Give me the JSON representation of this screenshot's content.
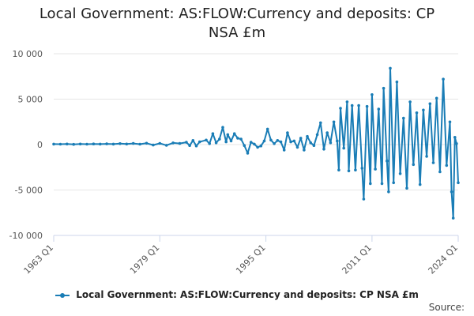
{
  "title_lines": [
    "Local Government: AS:FLOW:Currency and deposits: CP",
    "NSA £m"
  ],
  "source_label": "Source:",
  "colors": {
    "series": "#1a7db6",
    "grid": "#e6e6e6",
    "axis": "#ccd6eb"
  },
  "chart_data": {
    "type": "line",
    "title": "Local Government: AS:FLOW:Currency and deposits: CP NSA £m",
    "xlabel": "",
    "ylabel": "",
    "ylim": [
      -10000,
      10000
    ],
    "yticks": [
      10000,
      5000,
      0,
      -5000,
      -10000
    ],
    "ytick_labels": [
      "10 000",
      "5 000",
      "0",
      "-5 000",
      "-10 000"
    ],
    "x_start": "1963 Q1",
    "x_end": "2024 Q1",
    "xticks": [
      "1963 Q1",
      "1979 Q1",
      "1995 Q1",
      "2011 Q1",
      "2024 Q1"
    ],
    "grid": true,
    "legend": "bottom",
    "series": [
      {
        "name": "Local Government: AS:FLOW:Currency and deposits: CP NSA £m",
        "points": [
          [
            "1963 Q1",
            50
          ],
          [
            "1964 Q1",
            40
          ],
          [
            "1965 Q1",
            60
          ],
          [
            "1966 Q1",
            30
          ],
          [
            "1967 Q1",
            60
          ],
          [
            "1968 Q1",
            40
          ],
          [
            "1969 Q1",
            70
          ],
          [
            "1970 Q1",
            50
          ],
          [
            "1971 Q1",
            80
          ],
          [
            "1972 Q1",
            50
          ],
          [
            "1973 Q1",
            100
          ],
          [
            "1974 Q1",
            60
          ],
          [
            "1975 Q1",
            120
          ],
          [
            "1976 Q1",
            40
          ],
          [
            "1977 Q1",
            150
          ],
          [
            "1978 Q1",
            -50
          ],
          [
            "1979 Q1",
            130
          ],
          [
            "1980 Q1",
            -80
          ],
          [
            "1981 Q1",
            180
          ],
          [
            "1982 Q1",
            120
          ],
          [
            "1983 Q1",
            250
          ],
          [
            "1983 Q3",
            -100
          ],
          [
            "1984 Q1",
            450
          ],
          [
            "1984 Q3",
            -150
          ],
          [
            "1985 Q1",
            300
          ],
          [
            "1986 Q1",
            500
          ],
          [
            "1986 Q3",
            100
          ],
          [
            "1987 Q1",
            1200
          ],
          [
            "1987 Q3",
            200
          ],
          [
            "1988 Q1",
            600
          ],
          [
            "1988 Q3",
            1900
          ],
          [
            "1989 Q1",
            300
          ],
          [
            "1989 Q2",
            1100
          ],
          [
            "1989 Q4",
            400
          ],
          [
            "1990 Q2",
            1200
          ],
          [
            "1990 Q4",
            700
          ],
          [
            "1991 Q2",
            600
          ],
          [
            "1991 Q4",
            -100
          ],
          [
            "1992 Q2",
            -950
          ],
          [
            "1992 Q4",
            250
          ],
          [
            "1993 Q2",
            50
          ],
          [
            "1993 Q4",
            -300
          ],
          [
            "1994 Q2",
            -150
          ],
          [
            "1994 Q4",
            400
          ],
          [
            "1995 Q2",
            1700
          ],
          [
            "1995 Q4",
            500
          ],
          [
            "1996 Q2",
            100
          ],
          [
            "1996 Q4",
            450
          ],
          [
            "1997 Q2",
            300
          ],
          [
            "1997 Q4",
            -600
          ],
          [
            "1998 Q2",
            1300
          ],
          [
            "1998 Q4",
            300
          ],
          [
            "1999 Q2",
            400
          ],
          [
            "1999 Q4",
            -300
          ],
          [
            "2000 Q2",
            700
          ],
          [
            "2000 Q4",
            -600
          ],
          [
            "2001 Q2",
            900
          ],
          [
            "2001 Q4",
            200
          ],
          [
            "2002 Q2",
            -100
          ],
          [
            "2002 Q4",
            1100
          ],
          [
            "2003 Q2",
            2400
          ],
          [
            "2003 Q4",
            -500
          ],
          [
            "2004 Q2",
            1300
          ],
          [
            "2004 Q4",
            200
          ],
          [
            "2005 Q2",
            2500
          ],
          [
            "2005 Q4",
            400
          ],
          [
            "2006 Q1",
            -2800
          ],
          [
            "2006 Q2",
            4000
          ],
          [
            "2006 Q4",
            -400
          ],
          [
            "2007 Q2",
            4700
          ],
          [
            "2007 Q3",
            -2900
          ],
          [
            "2008 Q1",
            4300
          ],
          [
            "2008 Q3",
            -2800
          ],
          [
            "2009 Q1",
            4300
          ],
          [
            "2009 Q3",
            -2600
          ],
          [
            "2009 Q4",
            -6000
          ],
          [
            "2010 Q2",
            4200
          ],
          [
            "2010 Q4",
            -4300
          ],
          [
            "2011 Q1",
            5500
          ],
          [
            "2011 Q3",
            -2700
          ],
          [
            "2012 Q1",
            3900
          ],
          [
            "2012 Q3",
            -4300
          ],
          [
            "2012 Q4",
            6200
          ],
          [
            "2013 Q2",
            -1800
          ],
          [
            "2013 Q3",
            -5200
          ],
          [
            "2013 Q4",
            8400
          ],
          [
            "2014 Q2",
            -4200
          ],
          [
            "2014 Q4",
            6900
          ],
          [
            "2015 Q2",
            -3200
          ],
          [
            "2015 Q4",
            2900
          ],
          [
            "2016 Q2",
            -4800
          ],
          [
            "2016 Q4",
            4700
          ],
          [
            "2017 Q2",
            -2200
          ],
          [
            "2017 Q4",
            3500
          ],
          [
            "2018 Q2",
            -4400
          ],
          [
            "2018 Q4",
            3800
          ],
          [
            "2019 Q2",
            -1300
          ],
          [
            "2019 Q4",
            4500
          ],
          [
            "2020 Q2",
            -2000
          ],
          [
            "2020 Q4",
            5100
          ],
          [
            "2021 Q2",
            -3000
          ],
          [
            "2021 Q4",
            7200
          ],
          [
            "2022 Q2",
            -2300
          ],
          [
            "2022 Q4",
            2500
          ],
          [
            "2023 Q1",
            -5200
          ],
          [
            "2023 Q2",
            -8100
          ],
          [
            "2023 Q3",
            800
          ],
          [
            "2023 Q4",
            100
          ],
          [
            "2024 Q1",
            -4200
          ]
        ]
      }
    ]
  }
}
